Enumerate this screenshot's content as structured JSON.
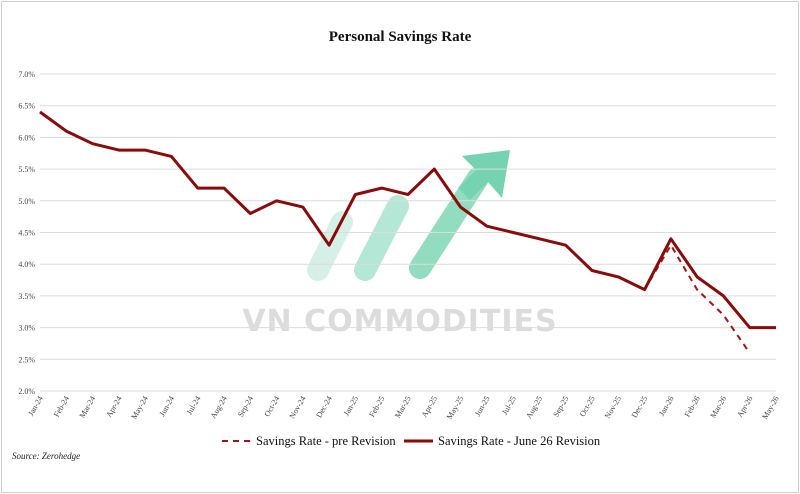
{
  "chart_data": {
    "type": "line",
    "title": "Personal Savings Rate",
    "categories": [
      "Jan-24",
      "Feb-24",
      "Mar-24",
      "Apr-24",
      "May-24",
      "Jun-24",
      "Jul-24",
      "Aug-24",
      "Sep-24",
      "Oct-24",
      "Nov-24",
      "Dec-24",
      "Jan-25",
      "Feb-25",
      "Mar-25",
      "Apr-25",
      "May-25",
      "Jun-25",
      "Jul-25",
      "Aug-25",
      "Sep-25",
      "Oct-25",
      "Nov-25",
      "Dec-25",
      "Jan-26",
      "Feb-26",
      "Mar-26",
      "Apr-26",
      "May-26"
    ],
    "series": [
      {
        "name": "Savings Rate - pre Revision",
        "style": "dashed",
        "color": "#a31515",
        "values": [
          6.4,
          6.1,
          5.9,
          5.8,
          5.8,
          5.7,
          5.2,
          5.2,
          4.8,
          5.0,
          4.9,
          4.3,
          5.1,
          5.2,
          5.1,
          5.5,
          4.9,
          4.6,
          4.5,
          4.4,
          4.3,
          3.9,
          3.8,
          3.6,
          4.3,
          3.6,
          3.2,
          2.6,
          null
        ]
      },
      {
        "name": "Savings Rate - June 26 Revision",
        "style": "solid",
        "color": "#8b0a0a",
        "values": [
          6.4,
          6.1,
          5.9,
          5.8,
          5.8,
          5.7,
          5.2,
          5.2,
          4.8,
          5.0,
          4.9,
          4.3,
          5.1,
          5.2,
          5.1,
          5.5,
          4.9,
          4.6,
          4.5,
          4.4,
          4.3,
          3.9,
          3.8,
          3.6,
          4.4,
          3.8,
          3.5,
          3.0,
          3.0
        ]
      }
    ],
    "ylim": [
      2.0,
      7.0
    ],
    "yticks": [
      2.0,
      2.5,
      3.0,
      3.5,
      4.0,
      4.5,
      5.0,
      5.5,
      6.0,
      6.5,
      7.0
    ],
    "ytick_labels": [
      "2.0%",
      "2.5%",
      "3.0%",
      "3.5%",
      "4.0%",
      "4.5%",
      "5.0%",
      "5.5%",
      "6.0%",
      "6.5%",
      "7.0%"
    ],
    "grid": true,
    "legend_position": "bottom"
  },
  "source_text": "Source: Zerohedge",
  "watermark": {
    "text": "VN COMMODITIES",
    "colors": [
      "#9fd9c9",
      "#48c79c"
    ]
  },
  "colors": {
    "grid": "#dcdcdc",
    "frame": "#cfcfcf"
  }
}
